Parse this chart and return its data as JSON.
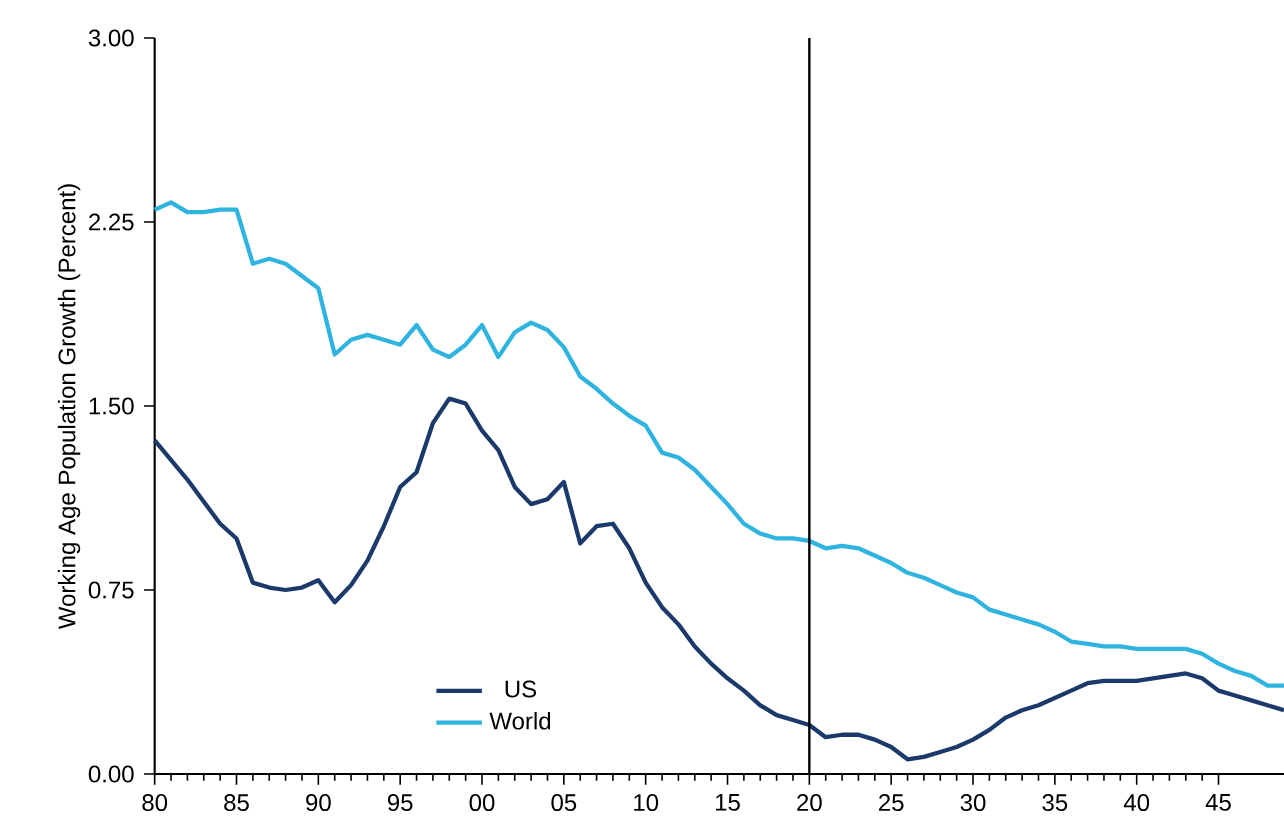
{
  "chart_data": {
    "type": "line",
    "ylabel": "Working Age Population Growth (Percent)",
    "xlim": [
      1980,
      2049
    ],
    "ylim": [
      0,
      3
    ],
    "xticks": [
      {
        "value": 1980,
        "label": "80"
      },
      {
        "value": 1985,
        "label": "85"
      },
      {
        "value": 1990,
        "label": "90"
      },
      {
        "value": 1995,
        "label": "95"
      },
      {
        "value": 2000,
        "label": "00"
      },
      {
        "value": 2005,
        "label": "05"
      },
      {
        "value": 2010,
        "label": "10"
      },
      {
        "value": 2015,
        "label": "15"
      },
      {
        "value": 2020,
        "label": "20"
      },
      {
        "value": 2025,
        "label": "25"
      },
      {
        "value": 2030,
        "label": "30"
      },
      {
        "value": 2035,
        "label": "35"
      },
      {
        "value": 2040,
        "label": "40"
      },
      {
        "value": 2045,
        "label": "45"
      }
    ],
    "yticks": [
      {
        "value": 0,
        "label": "0.00"
      },
      {
        "value": 0.75,
        "label": "0.75"
      },
      {
        "value": 1.5,
        "label": "1.50"
      },
      {
        "value": 2.25,
        "label": "2.25"
      },
      {
        "value": 3,
        "label": "3.00"
      }
    ],
    "x": [
      1980,
      1981,
      1982,
      1983,
      1984,
      1985,
      1986,
      1987,
      1988,
      1989,
      1990,
      1991,
      1992,
      1993,
      1994,
      1995,
      1996,
      1997,
      1998,
      1999,
      2000,
      2001,
      2002,
      2003,
      2004,
      2005,
      2006,
      2007,
      2008,
      2009,
      2010,
      2011,
      2012,
      2013,
      2014,
      2015,
      2016,
      2017,
      2018,
      2019,
      2020,
      2021,
      2022,
      2023,
      2024,
      2025,
      2026,
      2027,
      2028,
      2029,
      2030,
      2031,
      2032,
      2033,
      2034,
      2035,
      2036,
      2037,
      2038,
      2039,
      2040,
      2041,
      2042,
      2043,
      2044,
      2045,
      2046,
      2047,
      2048,
      2049
    ],
    "series": [
      {
        "name": "US",
        "color": "#1b3a6b",
        "values": [
          1.36,
          1.28,
          1.2,
          1.11,
          1.02,
          0.96,
          0.78,
          0.76,
          0.75,
          0.76,
          0.79,
          0.7,
          0.77,
          0.87,
          1.01,
          1.17,
          1.23,
          1.43,
          1.53,
          1.51,
          1.4,
          1.32,
          1.17,
          1.1,
          1.12,
          1.19,
          0.94,
          1.01,
          1.02,
          0.92,
          0.78,
          0.68,
          0.61,
          0.52,
          0.45,
          0.39,
          0.34,
          0.28,
          0.24,
          0.22,
          0.2,
          0.15,
          0.16,
          0.16,
          0.14,
          0.11,
          0.06,
          0.07,
          0.09,
          0.11,
          0.14,
          0.18,
          0.23,
          0.26,
          0.28,
          0.31,
          0.34,
          0.37,
          0.38,
          0.38,
          0.38,
          0.39,
          0.4,
          0.41,
          0.39,
          0.34,
          0.32,
          0.3,
          0.28,
          0.26
        ]
      },
      {
        "name": "World",
        "color": "#2fb4e0",
        "values": [
          2.3,
          2.33,
          2.29,
          2.29,
          2.3,
          2.3,
          2.08,
          2.1,
          2.08,
          2.03,
          1.98,
          1.71,
          1.77,
          1.79,
          1.77,
          1.75,
          1.83,
          1.73,
          1.7,
          1.75,
          1.83,
          1.7,
          1.8,
          1.84,
          1.81,
          1.74,
          1.62,
          1.57,
          1.51,
          1.46,
          1.42,
          1.31,
          1.29,
          1.24,
          1.17,
          1.1,
          1.02,
          0.98,
          0.96,
          0.96,
          0.95,
          0.92,
          0.93,
          0.92,
          0.89,
          0.86,
          0.82,
          0.8,
          0.77,
          0.74,
          0.72,
          0.67,
          0.65,
          0.63,
          0.61,
          0.58,
          0.54,
          0.53,
          0.52,
          0.52,
          0.51,
          0.51,
          0.51,
          0.51,
          0.49,
          0.45,
          0.42,
          0.4,
          0.36,
          0.36
        ]
      }
    ],
    "ref_lines": [
      {
        "axis": "x",
        "value": 2020,
        "color": "#000000"
      }
    ],
    "legend": "bottom",
    "grid": false,
    "marker": "none",
    "line_style": "solid"
  }
}
